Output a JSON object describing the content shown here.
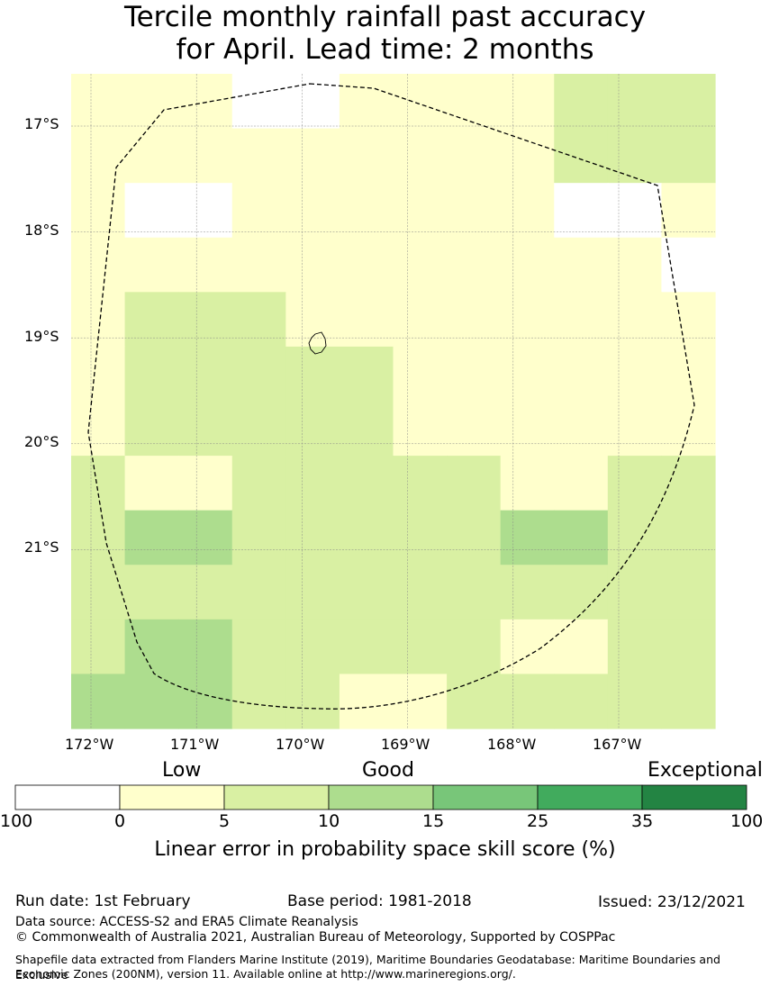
{
  "title": {
    "line1": "Tercile monthly rainfall past accuracy",
    "line2": "for April. Lead time: 2 months"
  },
  "map": {
    "lat_labels": [
      "17°S",
      "18°S",
      "19°S",
      "20°S",
      "21°S"
    ],
    "lon_labels": [
      "172°W",
      "171°W",
      "170°W",
      "169°W",
      "168°W",
      "167°W"
    ],
    "lat_values": [
      -17,
      -18,
      -19,
      -20,
      -21
    ],
    "lon_values": [
      -172,
      -171,
      -170,
      -169,
      -168,
      -167
    ],
    "cell_rows": [
      [
        "c1",
        "c1",
        "c1",
        "c0",
        "c0",
        "c1",
        "c1",
        "c1",
        "c1",
        "c2",
        "c2",
        "c2"
      ],
      [
        "c1",
        "c1",
        "c1",
        "c1",
        "c1",
        "c1",
        "c1",
        "c1",
        "c1",
        "c2",
        "c2",
        "c2"
      ],
      [
        "c1",
        "c0",
        "c0",
        "c1",
        "c1",
        "c1",
        "c1",
        "c1",
        "c1",
        "c0",
        "c0",
        "c1"
      ],
      [
        "c1",
        "c1",
        "c1",
        "c1",
        "c1",
        "c1",
        "c1",
        "c1",
        "c1",
        "c1",
        "c1",
        "c0"
      ],
      [
        "c1",
        "c2",
        "c2",
        "c2",
        "c1",
        "c1",
        "c1",
        "c1",
        "c1",
        "c1",
        "c1",
        "c1"
      ],
      [
        "c1",
        "c2",
        "c2",
        "c2",
        "c2",
        "c2",
        "c1",
        "c1",
        "c1",
        "c1",
        "c1",
        "c1"
      ],
      [
        "c1",
        "c2",
        "c2",
        "c2",
        "c2",
        "c2",
        "c1",
        "c1",
        "c1",
        "c1",
        "c1",
        "c1"
      ],
      [
        "c2",
        "c1",
        "c1",
        "c2",
        "c2",
        "c2",
        "c2",
        "c2",
        "c1",
        "c1",
        "c2",
        "c2"
      ],
      [
        "c2",
        "c3",
        "c3",
        "c2",
        "c2",
        "c2",
        "c2",
        "c2",
        "c3",
        "c3",
        "c2",
        "c2"
      ],
      [
        "c2",
        "c2",
        "c2",
        "c2",
        "c2",
        "c2",
        "c2",
        "c2",
        "c2",
        "c2",
        "c2",
        "c2"
      ],
      [
        "c2",
        "c3",
        "c3",
        "c2",
        "c2",
        "c2",
        "c2",
        "c2",
        "c1",
        "c1",
        "c2",
        "c2"
      ],
      [
        "c3",
        "c3",
        "c3",
        "c2",
        "c2",
        "c1",
        "c1",
        "c2",
        "c2",
        "c2",
        "c2",
        "c2"
      ]
    ],
    "cell_colors": {
      "c0": "#ffffff",
      "c1": "#ffffcc",
      "c2": "#d9f0a3",
      "c3": "#addd8e"
    }
  },
  "legend": {
    "category_labels": [
      "Low",
      "Good",
      "Exceptional"
    ],
    "colors": [
      "#ffffff",
      "#ffffcc",
      "#d9f0a3",
      "#addd8e",
      "#78c679",
      "#41ab5d",
      "#238443"
    ],
    "tick_labels": [
      "100",
      "0",
      "5",
      "10",
      "15",
      "25",
      "35",
      "100"
    ],
    "axis_title": "Linear error in probability space skill score (%)"
  },
  "footer": {
    "run_date": "Run date: 1st February",
    "base_period": "Base period: 1981-2018",
    "issued": "Issued: 23/12/2021",
    "data_source": "Data source: ACCESS-S2 and ERA5 Climate Reanalysis",
    "copyright": "© Commonwealth of Australia 2021, Australian Bureau of Meteorology, Supported by COSPPac",
    "shapefile_line1": "Shapefile data extracted from Flanders Marine Institute (2019), Maritime Boundaries Geodatabase: Maritime Boundaries and Exclusive",
    "shapefile_line2": "Economic Zones (200NM), version 11. Available online at http://www.marineregions.org/."
  }
}
